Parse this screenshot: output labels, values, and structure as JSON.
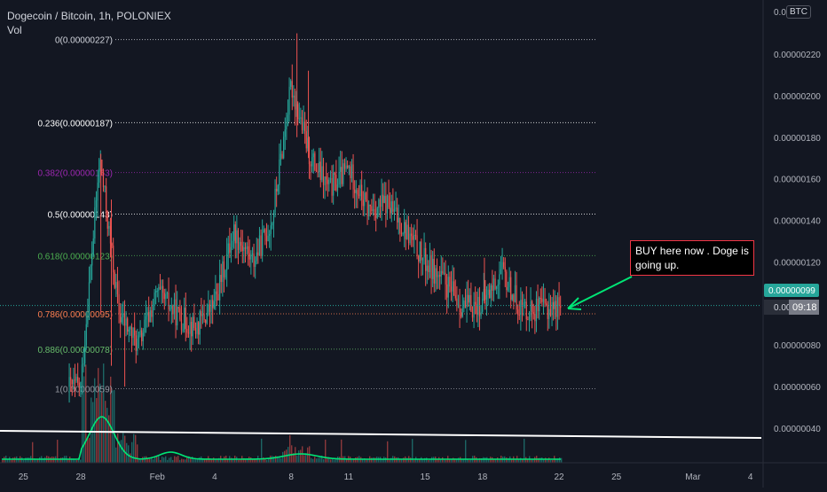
{
  "legend": {
    "symbol": "Dogecoin / Bitcoin, 1h, POLONIEX",
    "volume_label": "Vol"
  },
  "currency_chip": "BTC",
  "callout": {
    "text": "BUY here now . Doge is going up."
  },
  "price_axis": {
    "ticks": [
      "0.00000220",
      "0.00000200",
      "0.00000180",
      "0.00000160",
      "0.00000140",
      "0.00000120",
      "0.00000080",
      "0.00000060",
      "0.00000040"
    ],
    "top_cut": "0.000",
    "last_price_badge": "0.00000099",
    "timer_badge_left": "0.000",
    "timer_badge_right": "09:18"
  },
  "time_axis": {
    "ticks": [
      "25",
      "28",
      "Feb",
      "4",
      "8",
      "11",
      "15",
      "18",
      "22",
      "25",
      "Mar",
      "4"
    ]
  },
  "chart_data": {
    "type": "candlestick",
    "title": "Dogecoin / Bitcoin, 1h, POLONIEX",
    "y_range": [
      2.9e-07,
      2.36e-06
    ],
    "fib_levels": [
      {
        "ratio": "0",
        "price": 2.27e-06,
        "label": "0(0.00000227)",
        "color": "#d1d4dc"
      },
      {
        "ratio": "0.236",
        "price": 1.87e-06,
        "label": "0.236(0.00000187)",
        "color": "#ffffff"
      },
      {
        "ratio": "0.382",
        "price": 1.63e-06,
        "label": "0.382(0.00000163)",
        "color": "#9c27b0"
      },
      {
        "ratio": "0.5",
        "price": 1.43e-06,
        "label": "0.5(0.00000143)",
        "color": "#ffffff"
      },
      {
        "ratio": "0.618",
        "price": 1.23e-06,
        "label": "0.618(0.00000123)",
        "color": "#4caf50"
      },
      {
        "ratio": "0.786",
        "price": 9.5e-07,
        "label": "0.786(0.00000095)",
        "color": "#ff7f50"
      },
      {
        "ratio": "0.886",
        "price": 7.8e-07,
        "label": "0.886(0.00000078)",
        "color": "#66bb6a"
      },
      {
        "ratio": "1",
        "price": 5.9e-07,
        "label": "1(0.00000059)",
        "color": "#9598a1"
      }
    ],
    "price_path": [
      [
        "Jan 28",
        6e-07
      ],
      [
        "Jan 29",
        1.7e-06
      ],
      [
        "Jan 30",
        9.5e-07
      ],
      [
        "Jan 31",
        8e-07
      ],
      [
        "Feb 1",
        1.05e-06
      ],
      [
        "Feb 2",
        9.5e-07
      ],
      [
        "Feb 3",
        8.8e-07
      ],
      [
        "Feb 4",
        1e-06
      ],
      [
        "Feb 5",
        1.35e-06
      ],
      [
        "Feb 6",
        1.2e-06
      ],
      [
        "Feb 7",
        1.4e-06
      ],
      [
        "Feb 8",
        2.05e-06
      ],
      [
        "Feb 9",
        1.7e-06
      ],
      [
        "Feb 10",
        1.55e-06
      ],
      [
        "Feb 11",
        1.65e-06
      ],
      [
        "Feb 12",
        1.45e-06
      ],
      [
        "Feb 13",
        1.48e-06
      ],
      [
        "Feb 14",
        1.35e-06
      ],
      [
        "Feb 15",
        1.2e-06
      ],
      [
        "Feb 16",
        1.1e-06
      ],
      [
        "Feb 17",
        9.8e-07
      ],
      [
        "Feb 18",
        1e-06
      ],
      [
        "Feb 19",
        1.15e-06
      ],
      [
        "Feb 20",
        9.8e-07
      ],
      [
        "Feb 21",
        9.7e-07
      ],
      [
        "Feb 22",
        9.9e-07
      ]
    ],
    "last_price": 9.9e-07,
    "trend_line": "white, descending across volume area",
    "volume_ma_color": "#00e676",
    "annotation_arrow_color": "#00e676"
  }
}
